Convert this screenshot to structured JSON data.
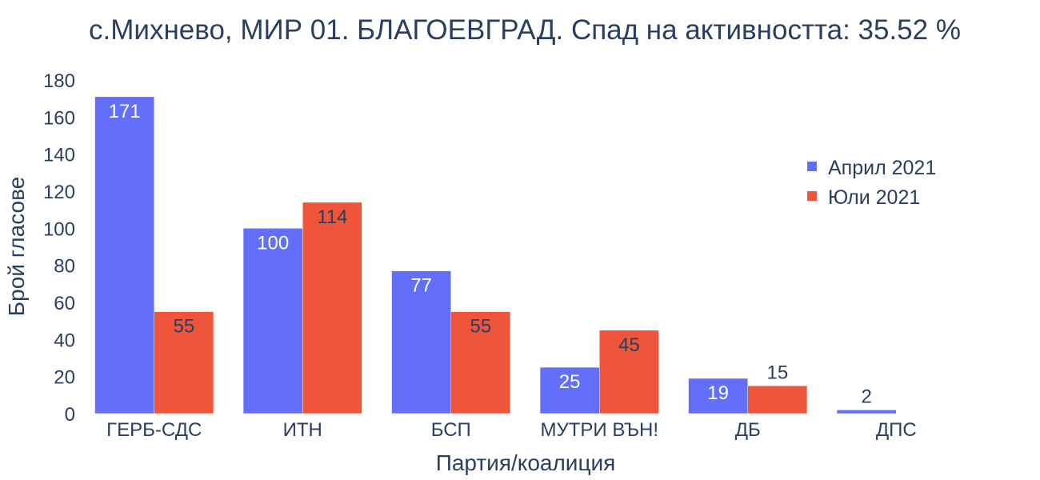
{
  "chart_data": {
    "type": "bar",
    "title": "с.Михнево, МИР 01. БЛАГОЕВГРАД. Спад на активността: 35.52 %",
    "xlabel": "Партия/коалиция",
    "ylabel": "Брой гласове",
    "categories": [
      "ГЕРБ-СДС",
      "ИТН",
      "БСП",
      "МУТРИ ВЪН!",
      "ДБ",
      "ДПС"
    ],
    "ylim": [
      0,
      180
    ],
    "yticks": [
      0,
      20,
      40,
      60,
      80,
      100,
      120,
      140,
      160,
      180
    ],
    "grid": false,
    "legend_position": "top-right",
    "series": [
      {
        "name": "Април 2021",
        "color": "#636efa",
        "values": [
          171,
          100,
          77,
          25,
          19,
          2
        ]
      },
      {
        "name": "Юли 2021",
        "color": "#ef553b",
        "values": [
          55,
          114,
          55,
          45,
          15,
          0
        ]
      }
    ]
  }
}
